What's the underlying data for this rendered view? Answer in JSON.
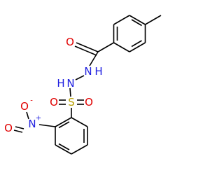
{
  "atoms": {
    "carbonyl_o": "O",
    "amide_n": "N",
    "amide_h": "H",
    "sulfonamide_h": "H",
    "sulfonamide_n": "N",
    "sulfur": "S",
    "sulfonyl_o_left": "O",
    "sulfonyl_o_right": "O",
    "nitro_n": "N",
    "nitro_n_charge": "+",
    "nitro_o_minus": "O",
    "nitro_o_charge": "-",
    "nitro_o_double": "O"
  }
}
